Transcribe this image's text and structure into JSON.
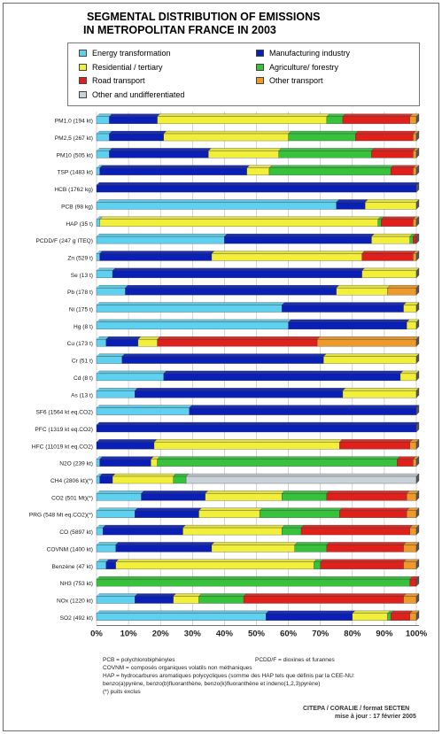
{
  "title_line1": "SEGMENTAL DISTRIBUTION OF EMISSIONS",
  "title_line2": "IN METROPOLITAN FRANCE IN 2003",
  "colors": {
    "energy": "#5ed0f0",
    "manufacturing": "#0a1fb5",
    "residential": "#f2ef3a",
    "agriculture": "#37c23c",
    "road": "#e0201b",
    "other_transport": "#ee9a2a",
    "other": "#c9d2d9"
  },
  "legend": [
    {
      "key": "energy",
      "label": "Energy transformation"
    },
    {
      "key": "manufacturing",
      "label": "Manufacturing industry"
    },
    {
      "key": "residential",
      "label": "Residential / tertiary"
    },
    {
      "key": "agriculture",
      "label": "Agriculture/ forestry"
    },
    {
      "key": "road",
      "label": "Road transport"
    },
    {
      "key": "other_transport",
      "label": "Other transport"
    },
    {
      "key": "other",
      "label": "Other and undifferentiated"
    }
  ],
  "chart_data": {
    "type": "bar",
    "orientation": "horizontal",
    "stacked": true,
    "title": "SEGMENTAL DISTRIBUTION OF EMISSIONS IN METROPOLITAN FRANCE IN 2003",
    "xlim": [
      0,
      100
    ],
    "x_ticks": [
      "0%",
      "10%",
      "20%",
      "30%",
      "40%",
      "50%",
      "60%",
      "70%",
      "80%",
      "90%",
      "100%"
    ],
    "grid": true,
    "series_order": [
      "energy",
      "manufacturing",
      "residential",
      "agriculture",
      "road",
      "other_transport",
      "other"
    ],
    "categories": [
      "PM1,0 (194 kt)",
      "PM2,5 (267 kt)",
      "PM10 (505 kt)",
      "TSP (1483 kt)",
      "HCB (1762 kg)",
      "PCB (98 kg)",
      "HAP (35 t)",
      "PCDD/F (247 g ITEQ)",
      "Zn (529 t)",
      "Se (13 t)",
      "Pb (178 t)",
      "Ni (175 t)",
      "Hg (8 t)",
      "Cu (173 t)",
      "Cr (51 t)",
      "Cd (8 t)",
      "As (13 t)",
      "SF6 (1564 kt eq.CO2)",
      "PFC (1319 kt eq.CO2)",
      "HFC (11019 kt eq.CO2)",
      "N2O (239 kt)",
      "CH4 (2806 kt)(*)",
      "CO2 (501 Mt)(*)",
      "PRG (548 Mt eq.CO2)(*)",
      "CO (5897 kt)",
      "COVNM (1400 kt)",
      "Benzène (47 kt)",
      "NH3 (753 kt)",
      "NOx (1220 kt)",
      "SO2 (492 kt)"
    ],
    "values": [
      [
        4,
        15,
        53,
        5,
        21,
        2,
        0
      ],
      [
        4,
        17,
        39,
        21,
        18,
        1,
        0
      ],
      [
        4,
        31,
        22,
        29,
        13,
        1,
        0
      ],
      [
        1,
        46,
        7,
        38,
        7,
        1,
        0
      ],
      [
        0,
        100,
        0,
        0,
        0,
        0,
        0
      ],
      [
        75,
        9,
        16,
        0,
        0,
        0,
        0
      ],
      [
        1,
        0,
        87,
        1,
        10,
        1,
        0
      ],
      [
        40,
        46,
        12,
        1,
        1,
        0,
        0
      ],
      [
        1,
        35,
        47,
        0,
        16,
        1,
        0
      ],
      [
        5,
        78,
        17,
        0,
        0,
        0,
        0
      ],
      [
        9,
        66,
        16,
        0,
        0,
        9,
        0
      ],
      [
        58,
        38,
        4,
        0,
        0,
        0,
        0
      ],
      [
        60,
        37,
        3,
        0,
        0,
        0,
        0
      ],
      [
        3,
        10,
        6,
        0,
        50,
        31,
        0
      ],
      [
        8,
        63,
        29,
        0,
        0,
        0,
        0
      ],
      [
        21,
        74,
        5,
        0,
        0,
        0,
        0
      ],
      [
        12,
        65,
        23,
        0,
        0,
        0,
        0
      ],
      [
        29,
        71,
        0,
        0,
        0,
        0,
        0
      ],
      [
        0,
        100,
        0,
        0,
        0,
        0,
        0
      ],
      [
        0,
        18,
        58,
        0,
        22,
        2,
        0
      ],
      [
        1,
        16,
        2,
        75,
        5,
        1,
        0
      ],
      [
        1,
        4,
        19,
        4,
        0,
        0,
        72
      ],
      [
        14,
        20,
        24,
        14,
        25,
        3,
        0
      ],
      [
        12,
        20,
        19,
        25,
        21,
        3,
        0
      ],
      [
        2,
        25,
        31,
        6,
        34,
        2,
        0
      ],
      [
        6,
        30,
        26,
        10,
        24,
        4,
        0
      ],
      [
        3,
        3,
        62,
        2,
        26,
        4,
        0
      ],
      [
        0,
        0,
        0,
        98,
        2,
        0,
        0
      ],
      [
        12,
        12,
        8,
        14,
        50,
        4,
        0
      ],
      [
        53,
        27,
        11,
        1,
        6,
        2,
        0
      ]
    ]
  },
  "notes": [
    "PCB = polychlorobiphényles",
    "PCDD/F = dioxines et furannes",
    "COVNM = composés organiques volatils non méthaniques",
    "HAP = hydrocarbures aromatiques polycycliques (somme des HAP tels que définis par la CEE-NU:",
    "benzo(a)pyrène, benzo(b)fluoranthène, benzo(k)fluoranthène et indeno(1,2,3)pyrène)",
    "(*) puits exclus"
  ],
  "credits_line1": "CITEPA / CORALIE / format SECTEN",
  "credits_line2": "mise à jour : 17 février 2005"
}
